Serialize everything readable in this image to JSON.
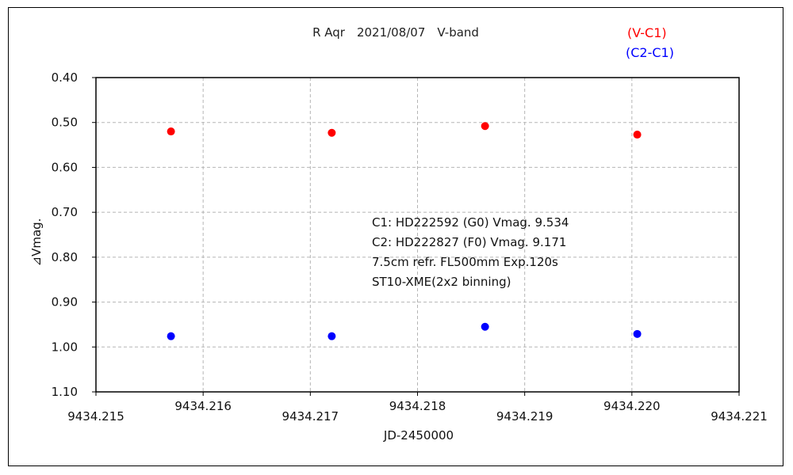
{
  "chart_data": {
    "type": "scatter",
    "title": "R Aqr　2021/08/07　V-band",
    "xlabel": "JD-2450000",
    "ylabel": "⊿Vmag.",
    "xlim": [
      9434.215,
      9434.221
    ],
    "ylim": [
      0.4,
      1.1
    ],
    "y_inverted": true,
    "x_ticks": [
      "9434.215",
      "9434.216",
      "9434.217",
      "9434.218",
      "9434.219",
      "9434.220",
      "9434.221"
    ],
    "y_ticks": [
      "0.40",
      "0.50",
      "0.60",
      "0.70",
      "0.80",
      "0.90",
      "1.00",
      "1.10"
    ],
    "grid": true,
    "legend_position": "top-right",
    "series": [
      {
        "name": "(V-C1)",
        "color": "#ff0000",
        "x": [
          9434.2157,
          9434.2172,
          9434.21863,
          9434.22005
        ],
        "y": [
          0.52,
          0.523,
          0.508,
          0.527
        ]
      },
      {
        "name": "(C2-C1)",
        "color": "#0000ff",
        "x": [
          9434.2157,
          9434.2172,
          9434.21863,
          9434.22005
        ],
        "y": [
          0.976,
          0.976,
          0.955,
          0.971
        ]
      }
    ],
    "annotations": [
      "C1: HD222592 (G0) Vmag. 9.534",
      "C2: HD222827 (F0) Vmag. 9.171",
      "7.5cm refr. FL500mm  Exp.120s",
      "ST10-XME(2x2 binning)"
    ]
  }
}
